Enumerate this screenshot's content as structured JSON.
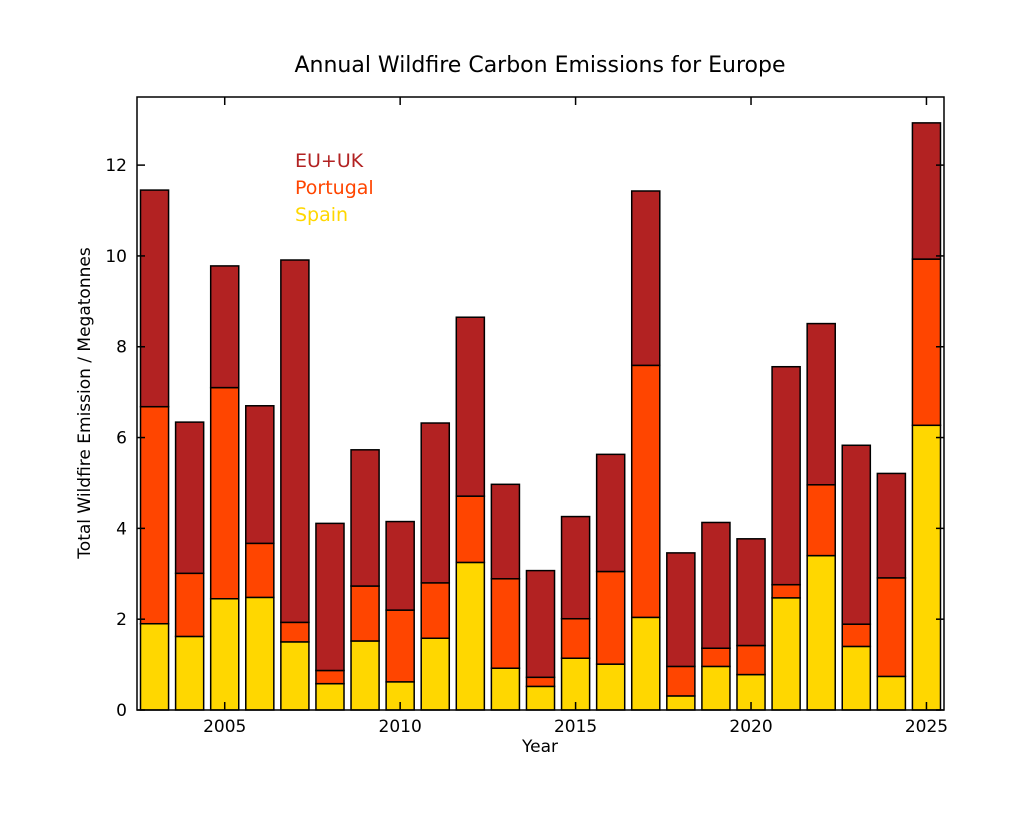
{
  "chart_data": {
    "type": "bar",
    "stacked": true,
    "title": "Annual Wildfire Carbon Emissions for Europe",
    "xlabel": "Year",
    "ylabel": "Total Wildfire Emission / Megatonnes",
    "xlim": [
      2002.5,
      2025.5
    ],
    "ylim": [
      0,
      13.5
    ],
    "x_ticks": [
      "2005",
      "2010",
      "2015",
      "2020",
      "2025"
    ],
    "y_ticks": [
      "0",
      "2",
      "4",
      "6",
      "8",
      "10",
      "12"
    ],
    "grid": false,
    "legend_position": "top-left",
    "categories": [
      2003,
      2004,
      2005,
      2006,
      2007,
      2008,
      2009,
      2010,
      2011,
      2012,
      2013,
      2014,
      2015,
      2016,
      2017,
      2018,
      2019,
      2020,
      2021,
      2022,
      2023,
      2024,
      2025
    ],
    "series": [
      {
        "name": "Spain",
        "color": "#ffd700",
        "values": [
          1.9,
          1.62,
          2.45,
          2.48,
          1.5,
          0.58,
          1.52,
          0.62,
          1.58,
          3.25,
          0.92,
          0.52,
          1.14,
          1.01,
          2.04,
          0.31,
          0.96,
          0.78,
          2.47,
          3.4,
          1.4,
          0.74,
          6.27
        ]
      },
      {
        "name": "Portugal",
        "color": "#ff4500",
        "values": [
          4.78,
          1.39,
          4.65,
          1.19,
          0.43,
          0.29,
          1.21,
          1.58,
          1.22,
          1.46,
          1.97,
          0.2,
          0.87,
          2.04,
          5.55,
          0.65,
          0.4,
          0.64,
          0.29,
          1.56,
          0.49,
          2.17,
          3.66
        ]
      },
      {
        "name": "EU+UK",
        "color": "#b22222",
        "values": [
          4.77,
          3.33,
          2.68,
          3.03,
          7.98,
          3.24,
          3.0,
          1.95,
          3.52,
          3.94,
          2.08,
          2.35,
          2.25,
          2.58,
          3.84,
          2.5,
          2.77,
          2.35,
          4.8,
          3.55,
          3.94,
          2.3,
          3.0
        ]
      }
    ]
  }
}
